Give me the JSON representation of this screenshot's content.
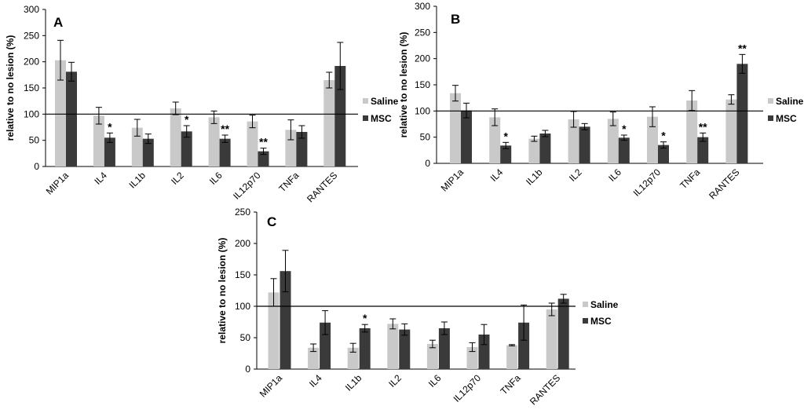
{
  "colors": {
    "saline": "#c9c9c9",
    "msc": "#3a3a3a",
    "axis": "#000000",
    "error": "#000000"
  },
  "chart_data": [
    {
      "type": "bar",
      "panel": "A",
      "ylabel": "relative to no lesion (%)",
      "ylim": [
        0,
        300
      ],
      "yticks": [
        0,
        50,
        100,
        150,
        200,
        250,
        300
      ],
      "reference_line": 100,
      "categories": [
        "MIP1a",
        "IL4",
        "IL1b",
        "IL2",
        "IL6",
        "IL12p70",
        "TNFa",
        "RANTES"
      ],
      "series": [
        {
          "name": "Saline",
          "values": [
            203,
            97,
            74,
            111,
            94,
            86,
            70,
            165
          ],
          "errors": [
            38,
            16,
            16,
            12,
            12,
            12,
            19,
            15
          ]
        },
        {
          "name": "MSC",
          "values": [
            181,
            55,
            53,
            67,
            53,
            29,
            66,
            192
          ],
          "errors": [
            18,
            9,
            9,
            11,
            7,
            6,
            12,
            45
          ]
        }
      ],
      "annotations": [
        {
          "category": "IL4",
          "series": "MSC",
          "text": "*"
        },
        {
          "category": "IL2",
          "series": "MSC",
          "text": "*"
        },
        {
          "category": "IL6",
          "series": "MSC",
          "text": "**"
        },
        {
          "category": "IL12p70",
          "series": "MSC",
          "text": "**"
        }
      ],
      "legend": [
        "Saline",
        "MSC"
      ],
      "legend_position": "right"
    },
    {
      "type": "bar",
      "panel": "B",
      "ylabel": "relative to no lesion (%)",
      "ylim": [
        0,
        300
      ],
      "yticks": [
        0,
        50,
        100,
        150,
        200,
        250,
        300
      ],
      "reference_line": 100,
      "categories": [
        "MIP1a",
        "IL4",
        "IL1b",
        "IL2",
        "IL6",
        "IL12p70",
        "TNFa",
        "RANTES"
      ],
      "series": [
        {
          "name": "Saline",
          "values": [
            134,
            88,
            47,
            84,
            85,
            89,
            120,
            122
          ],
          "errors": [
            15,
            16,
            5,
            15,
            13,
            19,
            19,
            9
          ]
        },
        {
          "name": "MSC",
          "values": [
            101,
            34,
            57,
            70,
            49,
            35,
            50,
            190
          ],
          "errors": [
            14,
            6,
            6,
            6,
            5,
            6,
            8,
            18
          ]
        }
      ],
      "annotations": [
        {
          "category": "IL4",
          "series": "MSC",
          "text": "*"
        },
        {
          "category": "IL6",
          "series": "MSC",
          "text": "*"
        },
        {
          "category": "IL12p70",
          "series": "MSC",
          "text": "*"
        },
        {
          "category": "TNFa",
          "series": "MSC",
          "text": "**"
        },
        {
          "category": "RANTES",
          "series": "MSC",
          "text": "**"
        }
      ],
      "legend": [
        "Saline",
        "MSC"
      ],
      "legend_position": "right"
    },
    {
      "type": "bar",
      "panel": "C",
      "ylabel": "relative to no lesion (%)",
      "ylim": [
        0,
        250
      ],
      "yticks": [
        0,
        50,
        100,
        150,
        200,
        250
      ],
      "reference_line": 100,
      "categories": [
        "MIP1a",
        "IL4",
        "IL1b",
        "IL2",
        "IL6",
        "IL12p70",
        "TNFa",
        "RANTES"
      ],
      "series": [
        {
          "name": "Saline",
          "values": [
            122,
            34,
            34,
            72,
            40,
            35,
            38,
            95
          ],
          "errors": [
            22,
            6,
            7,
            8,
            6,
            7,
            1,
            10
          ]
        },
        {
          "name": "MSC",
          "values": [
            156,
            74,
            65,
            63,
            65,
            55,
            74,
            112
          ],
          "errors": [
            33,
            19,
            6,
            9,
            10,
            16,
            28,
            7
          ]
        }
      ],
      "annotations": [
        {
          "category": "IL1b",
          "series": "MSC",
          "text": "*"
        }
      ],
      "legend": [
        "Saline",
        "MSC"
      ],
      "legend_position": "right"
    }
  ]
}
